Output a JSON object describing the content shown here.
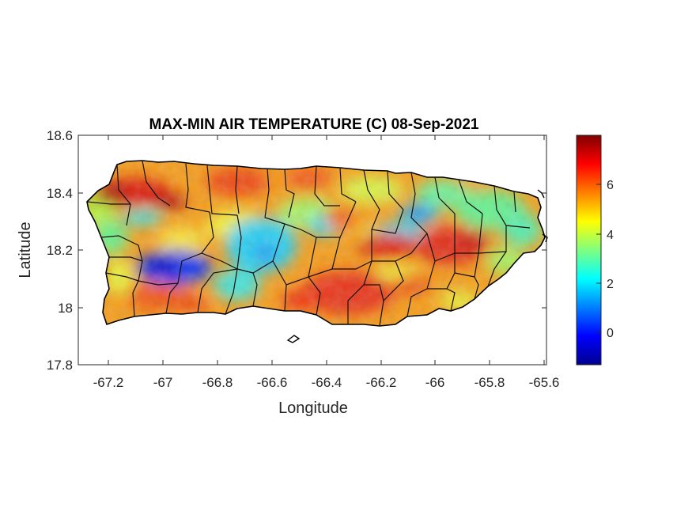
{
  "chart_data": {
    "type": "heatmap",
    "title": "MAX-MIN AIR TEMPERATURE (C) 08-Sep-2021",
    "xlabel": "Longitude",
    "ylabel": "Latitude",
    "xlim": [
      -67.3,
      -65.58
    ],
    "ylim": [
      17.8,
      18.6
    ],
    "xticks": [
      -67.2,
      -67,
      -66.8,
      -66.6,
      -66.4,
      -66.2,
      -66,
      -65.8,
      -65.6
    ],
    "xtick_labels": [
      "-67.2",
      "-67",
      "-66.8",
      "-66.6",
      "-66.4",
      "-66.2",
      "-66",
      "-65.8",
      "-65.6"
    ],
    "yticks": [
      17.8,
      18,
      18.2,
      18.4,
      18.6
    ],
    "ytick_labels": [
      "17.8",
      "18",
      "18.2",
      "18.4",
      "18.6"
    ],
    "colormap": "jet",
    "colorbar_range": [
      -1.3,
      8
    ],
    "colorbar_ticks": [
      0,
      2,
      4,
      6
    ],
    "colorbar_tick_labels": [
      "0",
      "2",
      "4",
      "6"
    ],
    "colors": {
      "outline": "#000000",
      "axis": "#262626"
    },
    "sample_values": [
      {
        "lon": -66.95,
        "lat": 18.12,
        "value": 0
      },
      {
        "lon": -66.62,
        "lat": 18.2,
        "value": 2
      },
      {
        "lon": -66.0,
        "lat": 18.34,
        "value": 1.5
      },
      {
        "lon": -67.15,
        "lat": 18.4,
        "value": 7.5
      },
      {
        "lon": -66.85,
        "lat": 18.44,
        "value": 6
      },
      {
        "lon": -66.45,
        "lat": 18.02,
        "value": 7
      },
      {
        "lon": -65.98,
        "lat": 18.22,
        "value": 7
      },
      {
        "lon": -66.25,
        "lat": 18.22,
        "value": 7
      },
      {
        "lon": -66.3,
        "lat": 18.35,
        "value": 4
      },
      {
        "lon": -65.75,
        "lat": 18.35,
        "value": 3.5
      },
      {
        "lon": -67.22,
        "lat": 18.2,
        "value": 4
      },
      {
        "lon": -67.1,
        "lat": 18.0,
        "value": 5.5
      }
    ]
  }
}
